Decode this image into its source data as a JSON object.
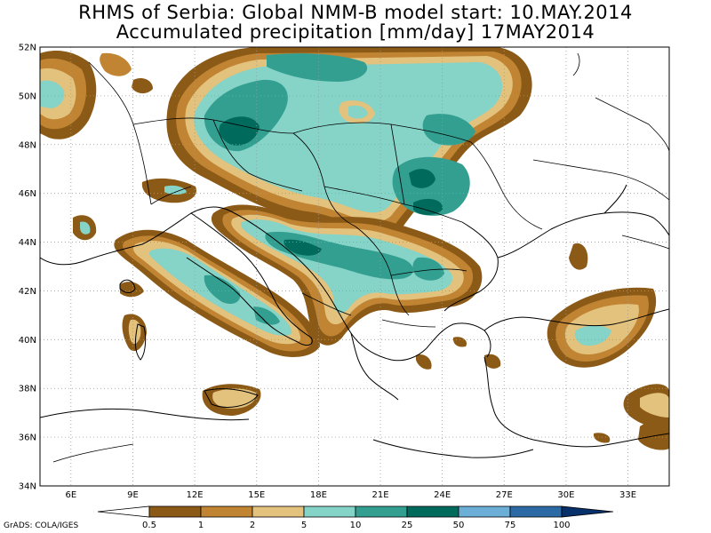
{
  "header": {
    "title_line1": "RHMS of Serbia: Global NMM-B model   start: 10.MAY.2014",
    "title_line2": "Accumulated precipitation [mm/day]  17MAY2014"
  },
  "axes": {
    "lat_labels": [
      "52N",
      "50N",
      "48N",
      "46N",
      "44N",
      "42N",
      "40N",
      "38N",
      "36N",
      "34N"
    ],
    "lon_labels": [
      "6E",
      "9E",
      "12E",
      "15E",
      "18E",
      "21E",
      "24E",
      "27E",
      "30E",
      "33E"
    ]
  },
  "colorbar": {
    "labels": [
      "0.5",
      "1",
      "2",
      "5",
      "10",
      "25",
      "50",
      "75",
      "100"
    ],
    "colors": [
      "#ffffff",
      "#8c5a17",
      "#c08433",
      "#e2c27d",
      "#86d3c7",
      "#339f91",
      "#006b5c",
      "#6baed6",
      "#2c6aa6",
      "#08306b"
    ]
  },
  "palette": {
    "lvl1": "#8c5a17",
    "lvl2": "#c08433",
    "lvl3": "#e2c27d",
    "lvl4": "#86d3c7",
    "lvl5": "#339f91",
    "lvl6": "#006b5c"
  },
  "footer": {
    "credit": "GrADS: COLA/IGES"
  }
}
